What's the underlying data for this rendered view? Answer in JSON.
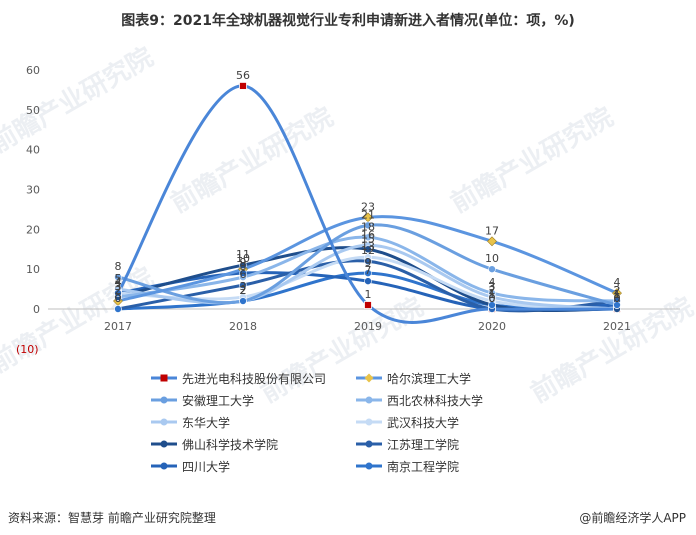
{
  "title": "图表9：2021年全球机器视觉行业专利申请新进入者情况(单位：项，%)",
  "source": "资料来源：智慧芽 前瞻产业研究院整理",
  "brand": "@前瞻经济学人APP",
  "watermark": "前瞻产业研究院",
  "colors": {
    "marker_red": "#c00000",
    "marker_gold": "#e8c34a"
  },
  "chart_data": {
    "type": "line",
    "x": [
      "2017",
      "2018",
      "2019",
      "2020",
      "2021"
    ],
    "ylim": [
      0,
      60
    ],
    "yticks": [
      0,
      10,
      20,
      30,
      40,
      50,
      60
    ],
    "extra_axis_label": "(10)",
    "series": [
      {
        "name": "先进光电科技股份有限公司",
        "values": [
          4,
          56,
          1,
          0,
          0
        ],
        "color": "#4a86d8",
        "marker": "square-red"
      },
      {
        "name": "哈尔滨理工大学",
        "values": [
          2,
          10,
          23,
          17,
          4
        ],
        "color": "#5b95e0",
        "marker": "diamond-gold"
      },
      {
        "name": "安徽理工大学",
        "values": [
          8,
          2,
          21,
          10,
          1
        ],
        "color": "#6a9fe0"
      },
      {
        "name": "西北农林科技大学",
        "values": [
          3,
          8,
          18,
          4,
          2
        ],
        "color": "#8ab6ea"
      },
      {
        "name": "东华大学",
        "values": [
          5,
          2,
          16,
          3,
          0
        ],
        "color": "#a9c9f0"
      },
      {
        "name": "武汉科技大学",
        "values": [
          4,
          3,
          13,
          2,
          0
        ],
        "color": "#c5dbf5"
      },
      {
        "name": "佛山科学技术学院",
        "values": [
          3,
          11,
          15,
          1,
          0
        ],
        "color": "#1f4e8c"
      },
      {
        "name": "江苏理工学院",
        "values": [
          0,
          6,
          12,
          0,
          2
        ],
        "color": "#2a5fa8"
      },
      {
        "name": "四川大学",
        "values": [
          4,
          9,
          7,
          0,
          1
        ],
        "color": "#2563b8"
      },
      {
        "name": "南京工程学院",
        "values": [
          0,
          2,
          9,
          1,
          1
        ],
        "color": "#2f74cc"
      }
    ]
  }
}
